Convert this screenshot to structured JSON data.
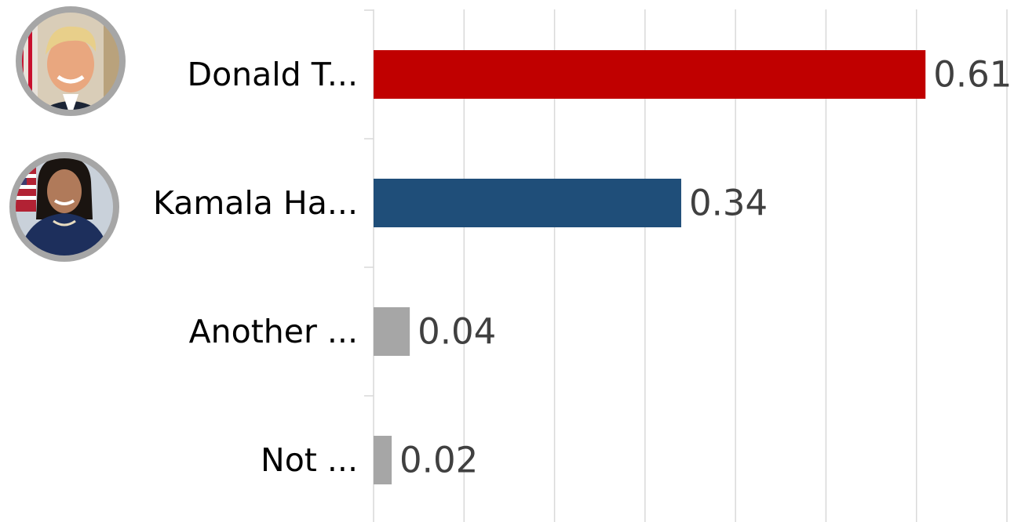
{
  "chart_data": {
    "type": "bar",
    "orientation": "horizontal",
    "categories": [
      "Donald T...",
      "Kamala Ha...",
      "Another ...",
      "Not ..."
    ],
    "values": [
      0.61,
      0.34,
      0.04,
      0.02
    ],
    "value_labels": [
      "0.61",
      "0.34",
      "0.04",
      "0.02"
    ],
    "colors": [
      "#c00000",
      "#1f4e79",
      "#a6a6a6",
      "#a6a6a6"
    ],
    "portraits": [
      {
        "category": "Donald T...",
        "icon": "donald-trump-portrait"
      },
      {
        "category": "Kamala Ha...",
        "icon": "kamala-harris-portrait"
      }
    ],
    "xlim": [
      0,
      0.7
    ],
    "xtick_step": 0.1,
    "grid": true,
    "legend": "none"
  }
}
